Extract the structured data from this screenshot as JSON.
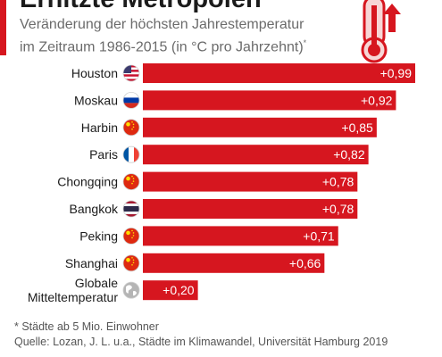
{
  "header": {
    "title": "Erhitzte Metropolen",
    "subtitle_line1": "Veränderung der höchsten Jahrestemperatur",
    "subtitle_line2": "im Zeitraum 1986-2015 (in °C pro Jahrzehnt)",
    "subtitle_mark": "*"
  },
  "chart_data": {
    "type": "bar",
    "orientation": "horizontal",
    "categories": [
      "Houston",
      "Moskau",
      "Harbin",
      "Paris",
      "Chongqing",
      "Bangkok",
      "Peking",
      "Shanghai",
      "Globale Mitteltemperatur"
    ],
    "category_lines": [
      [
        "Houston"
      ],
      [
        "Moskau"
      ],
      [
        "Harbin"
      ],
      [
        "Paris"
      ],
      [
        "Chongqing"
      ],
      [
        "Bangkok"
      ],
      [
        "Peking"
      ],
      [
        "Shanghai"
      ],
      [
        "Globale",
        "Mitteltemperatur"
      ]
    ],
    "values": [
      0.99,
      0.92,
      0.85,
      0.82,
      0.78,
      0.78,
      0.71,
      0.66,
      0.2
    ],
    "value_labels": [
      "+0,99",
      "+0,92",
      "+0,85",
      "+0,82",
      "+0,78",
      "+0,78",
      "+0,71",
      "+0,66",
      "+0,20"
    ],
    "flags": [
      "us-flag-icon",
      "russia-flag-icon",
      "china-flag-icon",
      "france-flag-icon",
      "china-flag-icon",
      "thailand-flag-icon",
      "china-flag-icon",
      "china-flag-icon",
      "globe-icon"
    ],
    "xlim": [
      0,
      0.99
    ],
    "bar_color": "#d6161f",
    "grid": false
  },
  "footnote": "* Städte ab 5 Mio. Einwohner",
  "source": "Quelle: Lozan, J. L. u.a., Städte im Klimawandel, Universität Hamburg 2019",
  "colors": {
    "accent": "#d6161f",
    "text": "#1b1b1b",
    "muted": "#6b6b6b"
  }
}
